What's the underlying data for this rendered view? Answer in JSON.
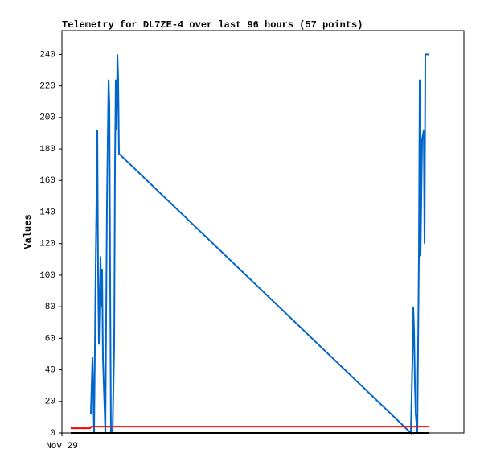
{
  "chart_data": {
    "type": "line",
    "title": "Telemetry for DL7ZE-4 over last 96 hours (57 points)",
    "ylabel": "Values",
    "xlim": [
      0,
      96
    ],
    "xticks": [
      {
        "value": 0,
        "label": "Nov 29"
      }
    ],
    "ylim": [
      0,
      255
    ],
    "yticks": [
      0,
      20,
      40,
      60,
      80,
      100,
      120,
      140,
      160,
      180,
      200,
      220,
      240
    ],
    "series": [
      {
        "color": "#0066cc",
        "x": [
          6.91,
          7.3,
          7.49,
          7.68,
          8.06,
          8.45,
          8.64,
          8.83,
          9.22,
          9.41,
          9.6,
          9.79,
          10.18,
          10.37,
          10.75,
          11.14,
          11.33,
          11.52,
          11.71,
          12.1,
          12.48,
          12.67,
          12.86,
          13.06,
          13.25,
          13.44,
          13.63,
          83.33,
          83.72,
          83.91,
          84.1,
          84.29,
          84.49,
          84.87,
          85.25,
          85.45,
          85.64,
          86.02,
          86.41,
          86.6,
          86.79,
          87.56
        ],
        "values": [
          12,
          48,
          24,
          0,
          104,
          192,
          100,
          56,
          112,
          80,
          104,
          48,
          16,
          0,
          144,
          224,
          208,
          96,
          0,
          0,
          56,
          168,
          224,
          192,
          240,
          224,
          177,
          0,
          48,
          80,
          64,
          32,
          12,
          0,
          112,
          224,
          112,
          186,
          192,
          120,
          240,
          240
        ]
      },
      {
        "color": "#ff0000",
        "x": [
          2.11,
          6.72,
          7.0,
          87.56
        ],
        "values": [
          3,
          3,
          4,
          4
        ]
      },
      {
        "color": "#000000",
        "x": [
          2.11,
          87.56
        ],
        "values": [
          0,
          0
        ]
      }
    ]
  }
}
